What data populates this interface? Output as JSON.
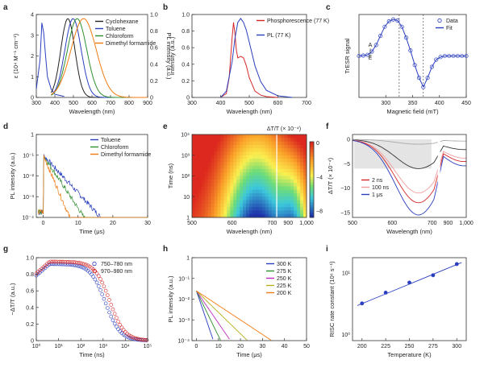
{
  "chart_data": [
    {
      "panel": "a",
      "type": "line",
      "xlabel": "Wavelength (nm)",
      "ylabel": "ε (10⁴ M⁻¹ cm⁻¹)",
      "y2label": "PL intensity (a.u.)",
      "xlim": [
        300,
        900
      ],
      "ylim": [
        0,
        4
      ],
      "y2lim": [
        0,
        1
      ],
      "xticks": [
        "300",
        "400",
        "500",
        "600",
        "700",
        "800",
        "900"
      ],
      "yticks": [
        "0",
        "1",
        "2",
        "3",
        "4"
      ],
      "y2ticks": [
        "0",
        "0.2",
        "0.4",
        "0.6",
        "0.8",
        "1.0"
      ],
      "absorption": {
        "x": [
          300,
          320,
          330,
          340,
          350,
          360,
          380,
          400,
          450
        ],
        "y": [
          0.4,
          1.8,
          3.6,
          3.1,
          2.0,
          1.0,
          0.4,
          0.15,
          0.05
        ]
      },
      "series": [
        {
          "name": "Cyclohexane",
          "color": "#222222",
          "peak": 470,
          "width": 38
        },
        {
          "name": "Toluene",
          "color": "#2b3fbf",
          "peak": 498,
          "width": 44
        },
        {
          "name": "Chloroform",
          "color": "#2f8f2f",
          "peak": 520,
          "width": 52
        },
        {
          "name": "Dimethyl formamide",
          "color": "#f07b12",
          "peak": 555,
          "width": 68
        }
      ]
    },
    {
      "panel": "b",
      "type": "line",
      "xlabel": "Wavelength (nm)",
      "ylabel": "Intensity (a.u.)",
      "xlim": [
        300,
        700
      ],
      "ylim": [
        0,
        1.05
      ],
      "xticks": [
        "300",
        "400",
        "500",
        "600",
        "700"
      ],
      "yticks": [
        "0",
        "0.2",
        "0.4",
        "0.6",
        "0.8",
        "1.0"
      ],
      "series": [
        {
          "name": "Phosphorescence (77 K)",
          "color": "#d62728",
          "x": [
            400,
            420,
            430,
            440,
            445,
            450,
            455,
            460,
            470,
            480,
            490,
            500,
            520,
            540,
            560,
            600
          ],
          "y": [
            0,
            0.05,
            0.25,
            0.75,
            0.95,
            0.8,
            0.6,
            0.5,
            0.52,
            0.5,
            0.4,
            0.25,
            0.08,
            0.03,
            0.01,
            0
          ]
        },
        {
          "name": "PL (77 K)",
          "color": "#2b3fbf",
          "x": [
            400,
            420,
            440,
            450,
            460,
            470,
            480,
            490,
            500,
            520,
            540,
            560,
            600,
            650
          ],
          "y": [
            0,
            0.08,
            0.45,
            0.75,
            0.95,
            1.0,
            0.95,
            0.85,
            0.7,
            0.4,
            0.2,
            0.09,
            0.02,
            0
          ]
        }
      ]
    },
    {
      "panel": "c",
      "type": "scatter",
      "xlabel": "Magnetic field (mT)",
      "ylabel": "TrESR signal",
      "emission_label": "E",
      "absorption_label": "A",
      "xlim": [
        250,
        450
      ],
      "xticks": [
        "300",
        "350",
        "400",
        "450"
      ],
      "vlines": [
        325,
        370
      ],
      "series": [
        {
          "name": "Data",
          "color": "#2b3fbf",
          "marker": "open-circle",
          "x": [
            250,
            258,
            266,
            274,
            282,
            290,
            298,
            306,
            314,
            322,
            330,
            338,
            346,
            354,
            362,
            370,
            378,
            386,
            394,
            402,
            410,
            418,
            426,
            434,
            442,
            450
          ],
          "y": [
            0,
            0.01,
            0.03,
            0.12,
            0.3,
            0.55,
            0.8,
            0.95,
            1.0,
            0.97,
            0.8,
            0.5,
            0.15,
            -0.25,
            -0.6,
            -0.85,
            -0.6,
            -0.3,
            -0.1,
            -0.03,
            0,
            0,
            0,
            0,
            0,
            0
          ]
        },
        {
          "name": "Fit",
          "color": "#2b3fbf",
          "marker": "line"
        }
      ]
    },
    {
      "panel": "d",
      "type": "line",
      "xlabel": "Time (μs)",
      "ylabel": "PL intensity (a.u.)",
      "scale": "log",
      "xlim": [
        -2,
        30
      ],
      "ylim_exp": [
        -4,
        0
      ],
      "xticks": [
        "0",
        "10",
        "20",
        "30"
      ],
      "yticks": [
        "10⁻⁴",
        "10⁻³",
        "10⁻²",
        "10⁻¹",
        "1"
      ],
      "series": [
        {
          "name": "Toluene",
          "color": "#2b3fbf",
          "tau": 2.4
        },
        {
          "name": "Chloroform",
          "color": "#2f8f2f",
          "tau": 1.7
        },
        {
          "name": "Dimethyl formamide",
          "color": "#f07b12",
          "tau": 1.1
        }
      ]
    },
    {
      "panel": "e",
      "type": "heatmap",
      "xlabel": "Wavelength (nm)",
      "ylabel": "Time (ns)",
      "cbar_label": "ΔT/T (× 10⁻⁴)",
      "cbar_ticks": [
        "0",
        "−4",
        "−8"
      ],
      "xticks": [
        "500",
        "600",
        "700",
        "900",
        "1,000"
      ],
      "yticks": [
        "1",
        "10",
        "10²",
        "10³",
        "10⁴"
      ]
    },
    {
      "panel": "f",
      "type": "line",
      "xlabel": "Wavelength (nm)",
      "ylabel": "ΔT/T (× 10⁻⁴)",
      "xticks": [
        "500",
        "600",
        "700",
        "900",
        "1,000"
      ],
      "yticks": [
        "0",
        "−5",
        "−10",
        "−15"
      ],
      "ylim": [
        -16,
        1
      ],
      "series": [
        {
          "name": "2 ns",
          "color": "#d62728"
        },
        {
          "name": "100 ns",
          "color": "#f19c9c"
        },
        {
          "name": "1 μs",
          "color": "#2b3fbf"
        }
      ]
    },
    {
      "panel": "g",
      "type": "scatter",
      "xlabel": "Time (ns)",
      "ylabel": "−ΔT/T (a.u.)",
      "scale": "logx",
      "xticks": [
        "10⁰",
        "10¹",
        "10²",
        "10³",
        "10⁴",
        "10⁵"
      ],
      "yticks": [
        "0",
        "0.2",
        "0.4",
        "0.6",
        "0.8",
        "1.0"
      ],
      "series": [
        {
          "name": "750–780 nm",
          "color": "#2b3fbf"
        },
        {
          "name": "970–980 nm",
          "color": "#d62728"
        }
      ]
    },
    {
      "panel": "h",
      "type": "line",
      "xlabel": "Time (μs)",
      "ylabel": "PL intensity (a.u.)",
      "scale": "log",
      "xticks": [
        "0",
        "10",
        "20",
        "30",
        "40",
        "50"
      ],
      "yticks": [
        "10⁻⁴",
        "10⁻³",
        "10⁻²",
        "10⁻¹",
        "1"
      ],
      "series": [
        {
          "name": "300 K",
          "color": "#2b3fbf",
          "tau": 1.4
        },
        {
          "name": "275 K",
          "color": "#2f8f2f",
          "tau": 2.0
        },
        {
          "name": "250 K",
          "color": "#c02cc0",
          "tau": 2.8
        },
        {
          "name": "225 K",
          "color": "#b6b020",
          "tau": 4.2
        },
        {
          "name": "200 K",
          "color": "#f07b12",
          "tau": 6.2
        }
      ]
    },
    {
      "panel": "i",
      "type": "scatter",
      "xlabel": "Temperature (K)",
      "ylabel": "RISC rate constant (10⁶ s⁻¹)",
      "scale": "logy",
      "xlim": [
        190,
        310
      ],
      "x": [
        200,
        225,
        250,
        275,
        300
      ],
      "y": [
        3.2,
        4.8,
        7.0,
        9.2,
        14.0
      ],
      "xticks": [
        "200",
        "225",
        "250",
        "275",
        "300"
      ],
      "yticks": [
        "10⁰",
        "10¹"
      ]
    }
  ],
  "panels": [
    "a",
    "b",
    "c",
    "d",
    "e",
    "f",
    "g",
    "h",
    "i"
  ]
}
